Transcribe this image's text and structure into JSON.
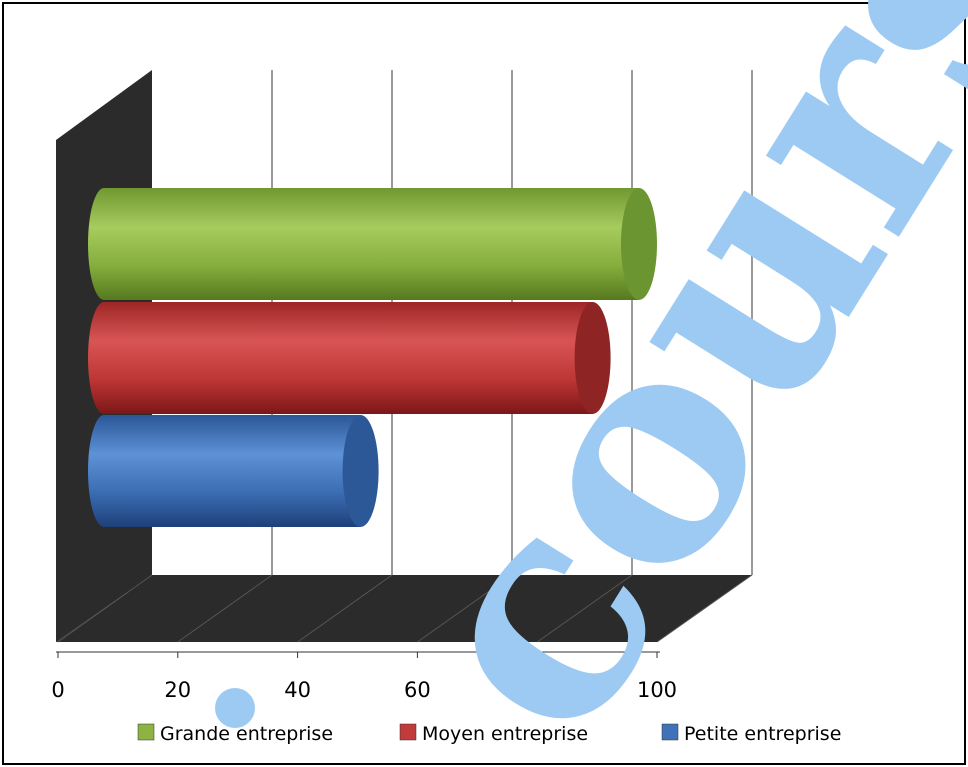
{
  "chart_data": {
    "type": "bar",
    "orientation": "horizontal",
    "style": "3d-cylinder",
    "title": "",
    "xlabel": "",
    "ylabel": "",
    "xlim": [
      0,
      100
    ],
    "x_ticks": [
      "0",
      "20",
      "40",
      "60",
      "80",
      "100"
    ],
    "grid": true,
    "legend_position": "bottom",
    "series": [
      {
        "name": "Grande entreprise",
        "value": 95,
        "color": "#8db443"
      },
      {
        "name": "Moyen entreprise",
        "value": 87,
        "color": "#c23b3b"
      },
      {
        "name": "Petite entreprise",
        "value": 47,
        "color": "#3f72b8"
      }
    ]
  },
  "watermark": {
    "text": "cours",
    "color": "#9ccaf2"
  }
}
